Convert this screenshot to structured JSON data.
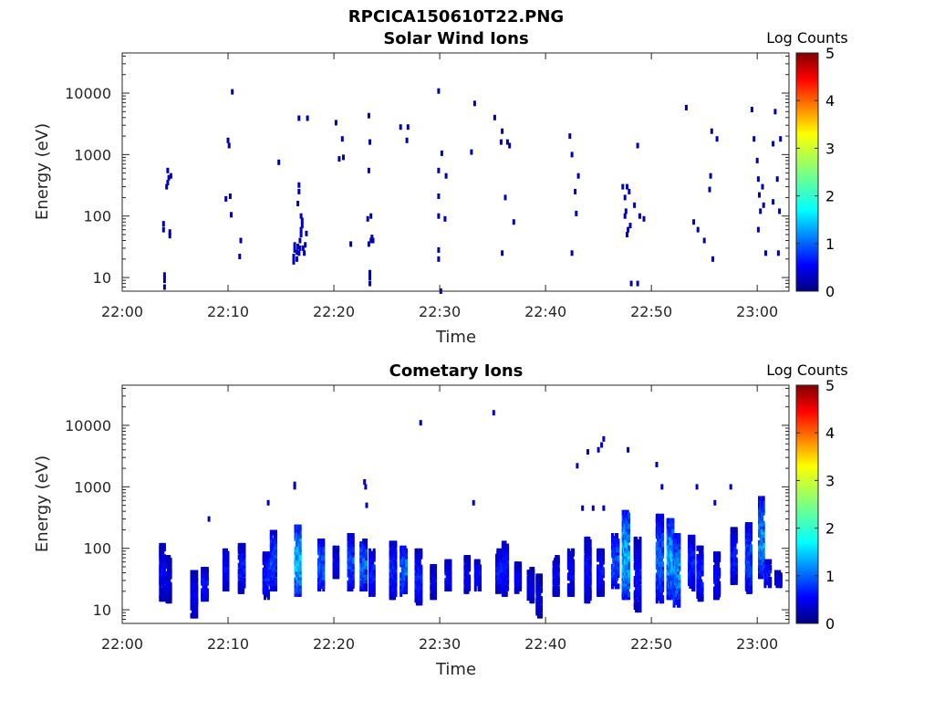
{
  "figure": {
    "title": "RPCICA150610T22.PNG"
  },
  "chart_data": [
    {
      "type": "heatmap",
      "title": "Solar Wind Ions",
      "xlabel": "Time",
      "ylabel": "Energy (eV)",
      "x_ticks": [
        "22:00",
        "22:10",
        "22:20",
        "22:30",
        "22:40",
        "22:50",
        "23:00"
      ],
      "x_tick_minutes": [
        0,
        10,
        20,
        30,
        40,
        50,
        60
      ],
      "xlim_minutes": [
        0,
        63
      ],
      "y_ticks": [
        "10",
        "100",
        "1000",
        "10000"
      ],
      "y_tick_values": [
        10,
        100,
        1000,
        10000
      ],
      "ylim": [
        6,
        45000
      ],
      "y_scale": "log",
      "colorbar": {
        "label": "Log Counts",
        "ticks": [
          "0",
          "1",
          "2",
          "3",
          "4",
          "5"
        ],
        "range": [
          0,
          5
        ],
        "colormap": "jet"
      },
      "cells": [
        [
          4.0,
          7,
          0.1
        ],
        [
          4.0,
          9,
          0.1
        ],
        [
          4.0,
          11,
          0.1
        ],
        [
          3.9,
          60,
          0.2
        ],
        [
          3.9,
          75,
          0.2
        ],
        [
          4.3,
          350,
          0.3
        ],
        [
          4.2,
          300,
          0.2
        ],
        [
          4.4,
          420,
          0.2
        ],
        [
          4.6,
          450,
          0.2
        ],
        [
          4.3,
          550,
          0.2
        ],
        [
          4.5,
          48,
          0.2
        ],
        [
          4.5,
          55,
          0.2
        ],
        [
          10.4,
          10500,
          0.2
        ],
        [
          10.2,
          210,
          0.2
        ],
        [
          10.3,
          105,
          0.2
        ],
        [
          9.8,
          190,
          0.2
        ],
        [
          10.0,
          1700,
          0.2
        ],
        [
          10.1,
          1400,
          0.2
        ],
        [
          11.1,
          22,
          0.2
        ],
        [
          11.2,
          40,
          0.2
        ],
        [
          14.8,
          750,
          0.2
        ],
        [
          16.2,
          18,
          0.3
        ],
        [
          16.2,
          22,
          0.3
        ],
        [
          16.3,
          28,
          0.3
        ],
        [
          16.3,
          34,
          0.3
        ],
        [
          16.5,
          20,
          0.3
        ],
        [
          16.5,
          26,
          0.4
        ],
        [
          16.6,
          32,
          0.3
        ],
        [
          16.7,
          25,
          0.4
        ],
        [
          16.8,
          30,
          0.4
        ],
        [
          16.8,
          40,
          0.3
        ],
        [
          16.9,
          50,
          0.4
        ],
        [
          16.9,
          60,
          0.4
        ],
        [
          17.0,
          70,
          0.4
        ],
        [
          17.0,
          85,
          0.4
        ],
        [
          16.9,
          100,
          0.3
        ],
        [
          17.1,
          30,
          0.3
        ],
        [
          17.2,
          25,
          0.3
        ],
        [
          17.3,
          34,
          0.2
        ],
        [
          17.4,
          52,
          0.2
        ],
        [
          16.6,
          160,
          0.2
        ],
        [
          16.7,
          250,
          0.2
        ],
        [
          16.7,
          320,
          0.2
        ],
        [
          16.7,
          3900,
          0.2
        ],
        [
          17.5,
          3900,
          0.2
        ],
        [
          20.2,
          3300,
          0.2
        ],
        [
          20.8,
          1800,
          0.2
        ],
        [
          20.5,
          850,
          0.2
        ],
        [
          20.9,
          900,
          0.2
        ],
        [
          21.6,
          35,
          0.2
        ],
        [
          23.3,
          4300,
          0.2
        ],
        [
          23.4,
          1600,
          0.2
        ],
        [
          23.3,
          550,
          0.2
        ],
        [
          23.2,
          90,
          0.2
        ],
        [
          23.5,
          100,
          0.2
        ],
        [
          23.5,
          40,
          0.3
        ],
        [
          23.3,
          35,
          0.3
        ],
        [
          23.7,
          40,
          0.3
        ],
        [
          23.6,
          45,
          0.2
        ],
        [
          23.4,
          8,
          0.2
        ],
        [
          23.4,
          10,
          0.2
        ],
        [
          23.4,
          12,
          0.2
        ],
        [
          26.3,
          2800,
          0.2
        ],
        [
          27.0,
          2800,
          0.2
        ],
        [
          26.9,
          1700,
          0.2
        ],
        [
          29.9,
          10800,
          0.2
        ],
        [
          30.2,
          1050,
          0.2
        ],
        [
          29.9,
          550,
          0.2
        ],
        [
          30.6,
          450,
          0.2
        ],
        [
          29.9,
          210,
          0.2
        ],
        [
          29.9,
          100,
          0.2
        ],
        [
          30.5,
          90,
          0.2
        ],
        [
          29.9,
          28,
          0.2
        ],
        [
          29.9,
          20,
          0.2
        ],
        [
          30.1,
          6,
          0.2
        ],
        [
          33.3,
          6800,
          0.2
        ],
        [
          33.0,
          1100,
          0.2
        ],
        [
          35.2,
          4000,
          0.2
        ],
        [
          35.9,
          2400,
          0.2
        ],
        [
          35.8,
          1600,
          0.2
        ],
        [
          36.4,
          1600,
          0.2
        ],
        [
          36.6,
          1400,
          0.2
        ],
        [
          36.2,
          200,
          0.2
        ],
        [
          37.0,
          80,
          0.2
        ],
        [
          35.9,
          25,
          0.2
        ],
        [
          42.3,
          2000,
          0.2
        ],
        [
          42.5,
          1000,
          0.2
        ],
        [
          43.1,
          450,
          0.2
        ],
        [
          42.8,
          250,
          0.2
        ],
        [
          42.9,
          110,
          0.2
        ],
        [
          42.5,
          25,
          0.2
        ],
        [
          47.3,
          300,
          0.3
        ],
        [
          47.5,
          200,
          0.3
        ],
        [
          47.6,
          120,
          0.3
        ],
        [
          47.8,
          60,
          0.3
        ],
        [
          48.0,
          70,
          0.3
        ],
        [
          47.7,
          300,
          0.3
        ],
        [
          47.9,
          250,
          0.3
        ],
        [
          47.5,
          100,
          0.2
        ],
        [
          47.7,
          50,
          0.2
        ],
        [
          48.4,
          150,
          0.2
        ],
        [
          48.7,
          1400,
          0.2
        ],
        [
          48.9,
          100,
          0.2
        ],
        [
          49.3,
          90,
          0.2
        ],
        [
          48.1,
          8,
          0.2
        ],
        [
          48.7,
          8,
          0.2
        ],
        [
          53.3,
          5800,
          0.2
        ],
        [
          54.0,
          80,
          0.2
        ],
        [
          54.4,
          60,
          0.2
        ],
        [
          55.0,
          40,
          0.2
        ],
        [
          55.7,
          2400,
          0.2
        ],
        [
          56.2,
          1800,
          0.2
        ],
        [
          55.6,
          450,
          0.2
        ],
        [
          55.5,
          270,
          0.2
        ],
        [
          55.8,
          20,
          0.3
        ],
        [
          59.5,
          5400,
          0.2
        ],
        [
          59.7,
          1800,
          0.2
        ],
        [
          60.0,
          800,
          0.2
        ],
        [
          60.1,
          400,
          0.2
        ],
        [
          60.2,
          220,
          0.2
        ],
        [
          60.5,
          300,
          0.2
        ],
        [
          60.6,
          150,
          0.2
        ],
        [
          60.3,
          120,
          0.2
        ],
        [
          60.1,
          60,
          0.2
        ],
        [
          60.8,
          25,
          0.2
        ],
        [
          61.7,
          5000,
          0.2
        ],
        [
          61.5,
          1500,
          0.2
        ],
        [
          62.2,
          1800,
          0.2
        ],
        [
          61.9,
          400,
          0.2
        ],
        [
          62.1,
          120,
          0.2
        ],
        [
          61.5,
          170,
          0.2
        ],
        [
          62.0,
          25,
          0.2
        ]
      ]
    },
    {
      "type": "heatmap",
      "title": "Cometary Ions",
      "xlabel": "Time",
      "ylabel": "Energy (eV)",
      "x_ticks": [
        "22:00",
        "22:10",
        "22:20",
        "22:30",
        "22:40",
        "22:50",
        "23:00"
      ],
      "x_tick_minutes": [
        0,
        10,
        20,
        30,
        40,
        50,
        60
      ],
      "xlim_minutes": [
        0,
        63
      ],
      "y_ticks": [
        "10",
        "100",
        "1000",
        "10000"
      ],
      "y_tick_values": [
        10,
        100,
        1000,
        10000
      ],
      "ylim": [
        6,
        45000
      ],
      "y_scale": "log",
      "colorbar": {
        "label": "Log Counts",
        "ticks": [
          "0",
          "1",
          "2",
          "3",
          "4",
          "5"
        ],
        "range": [
          0,
          5
        ],
        "colormap": "jet"
      },
      "bursts": [
        [
          3.8,
          15,
          110,
          0.4,
          0.7
        ],
        [
          4.4,
          14,
          70,
          0.35,
          0.6
        ],
        [
          6.8,
          8,
          40,
          0.5,
          0.7
        ],
        [
          7.8,
          15,
          45,
          0.5,
          0.9
        ],
        [
          9.8,
          22,
          90,
          0.4,
          0.8
        ],
        [
          11.3,
          20,
          110,
          0.5,
          0.9
        ],
        [
          13.6,
          16,
          80,
          0.45,
          1.0
        ],
        [
          14.3,
          22,
          180,
          0.45,
          1.2
        ],
        [
          16.6,
          18,
          220,
          0.45,
          1.9
        ],
        [
          18.8,
          22,
          130,
          0.45,
          1.4
        ],
        [
          20.2,
          35,
          100,
          0.4,
          0.7
        ],
        [
          21.6,
          22,
          160,
          0.45,
          1.2
        ],
        [
          22.8,
          22,
          130,
          0.5,
          1.4
        ],
        [
          23.6,
          18,
          90,
          0.4,
          0.9
        ],
        [
          25.6,
          16,
          120,
          0.5,
          1.0
        ],
        [
          26.6,
          18,
          100,
          0.5,
          1.4
        ],
        [
          28.0,
          13,
          90,
          0.5,
          0.9
        ],
        [
          29.4,
          16,
          50,
          0.4,
          0.7
        ],
        [
          30.8,
          22,
          60,
          0.45,
          0.8
        ],
        [
          32.6,
          20,
          70,
          0.4,
          0.7
        ],
        [
          33.6,
          22,
          60,
          0.45,
          0.8
        ],
        [
          35.6,
          20,
          90,
          0.45,
          0.9
        ],
        [
          36.2,
          18,
          120,
          0.45,
          0.9
        ],
        [
          37.4,
          20,
          55,
          0.45,
          0.7
        ],
        [
          38.6,
          14,
          45,
          0.5,
          0.6
        ],
        [
          39.4,
          8,
          35,
          0.4,
          0.6
        ],
        [
          41.0,
          18,
          70,
          0.45,
          0.7
        ],
        [
          42.4,
          18,
          90,
          0.45,
          0.8
        ],
        [
          44.0,
          14,
          140,
          0.45,
          0.8
        ],
        [
          45.2,
          18,
          90,
          0.5,
          0.8
        ],
        [
          46.6,
          24,
          160,
          0.55,
          1.3
        ],
        [
          47.6,
          16,
          380,
          0.55,
          1.9
        ],
        [
          48.7,
          10,
          140,
          0.5,
          0.8
        ],
        [
          50.8,
          14,
          330,
          0.55,
          1.3
        ],
        [
          51.8,
          16,
          280,
          0.5,
          1.8
        ],
        [
          52.4,
          12,
          160,
          0.5,
          1.6
        ],
        [
          53.8,
          22,
          150,
          0.45,
          1.0
        ],
        [
          54.6,
          15,
          100,
          0.45,
          0.9
        ],
        [
          56.2,
          16,
          80,
          0.45,
          0.8
        ],
        [
          57.8,
          28,
          200,
          0.45,
          0.9
        ],
        [
          59.2,
          20,
          240,
          0.45,
          1.2
        ],
        [
          60.4,
          35,
          640,
          0.4,
          1.6
        ],
        [
          61.0,
          25,
          60,
          0.5,
          0.9
        ],
        [
          62.0,
          25,
          40,
          0.5,
          0.7
        ]
      ],
      "scatter": [
        [
          28.2,
          11000,
          0.3
        ],
        [
          35.1,
          16000,
          0.3
        ],
        [
          44.0,
          3700,
          0.3
        ],
        [
          45.0,
          4000,
          0.3
        ],
        [
          45.3,
          4800,
          0.3
        ],
        [
          45.5,
          6000,
          0.3
        ],
        [
          47.8,
          4000,
          0.3
        ],
        [
          50.5,
          2300,
          0.3
        ],
        [
          43.0,
          2200,
          0.3
        ],
        [
          16.3,
          1100,
          0.3
        ],
        [
          16.3,
          1000,
          0.3
        ],
        [
          22.9,
          1200,
          0.3
        ],
        [
          23.0,
          1000,
          0.3
        ],
        [
          23.1,
          500,
          0.3
        ],
        [
          13.8,
          550,
          0.3
        ],
        [
          33.2,
          550,
          0.3
        ],
        [
          54.3,
          1000,
          0.3
        ],
        [
          51.0,
          1000,
          0.3
        ],
        [
          57.5,
          1000,
          0.3
        ],
        [
          56.0,
          550,
          0.3
        ],
        [
          45.5,
          450,
          0.3
        ],
        [
          44.5,
          450,
          0.3
        ],
        [
          43.5,
          450,
          0.3
        ],
        [
          8.2,
          300,
          0.3
        ]
      ]
    }
  ]
}
